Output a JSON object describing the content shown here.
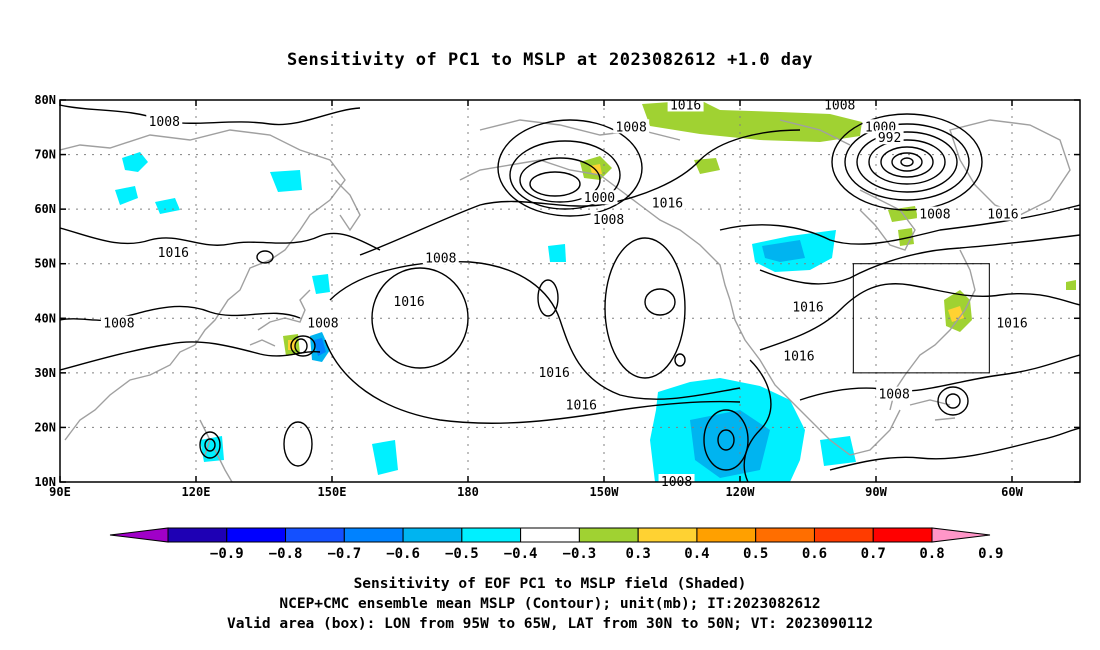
{
  "title": "Sensitivity of PC1 to MSLP at 2023082612 +1.0 day",
  "map": {
    "lat_labels": [
      "80N",
      "70N",
      "60N",
      "50N",
      "40N",
      "30N",
      "20N",
      "10N"
    ],
    "lon_labels": [
      "90E",
      "120E",
      "150E",
      "180",
      "150W",
      "120W",
      "90W",
      "60W"
    ],
    "lon_range_deg_east": [
      90,
      315
    ],
    "lat_range": [
      10,
      80
    ],
    "valid_box": {
      "lon": [
        -95,
        -65
      ],
      "lat": [
        30,
        50
      ]
    },
    "contour_labels": [
      {
        "text": "1008",
        "lon": 113,
        "lat": 76
      },
      {
        "text": "1008",
        "lon": 216,
        "lat": 75
      },
      {
        "text": "1008",
        "lon": 262,
        "lat": 79
      },
      {
        "text": "1000",
        "lon": 271,
        "lat": 75
      },
      {
        "text": "992",
        "lon": 273,
        "lat": 73
      },
      {
        "text": "1016",
        "lon": 228,
        "lat": 79
      },
      {
        "text": "1016",
        "lon": 115,
        "lat": 52
      },
      {
        "text": "1008",
        "lon": 103,
        "lat": 39
      },
      {
        "text": "1008",
        "lon": 148,
        "lat": 39
      },
      {
        "text": "1000",
        "lon": 209,
        "lat": 62
      },
      {
        "text": "1008",
        "lon": 211,
        "lat": 58
      },
      {
        "text": "1016",
        "lon": 224,
        "lat": 61
      },
      {
        "text": "1008",
        "lon": 174,
        "lat": 51
      },
      {
        "text": "1016",
        "lon": 167,
        "lat": 43
      },
      {
        "text": "1016",
        "lon": 199,
        "lat": 30
      },
      {
        "text": "1016",
        "lon": 205,
        "lat": 24
      },
      {
        "text": "1016",
        "lon": 255,
        "lat": 42
      },
      {
        "text": "1016",
        "lon": 253,
        "lat": 33
      },
      {
        "text": "1008",
        "lon": 283,
        "lat": 59
      },
      {
        "text": "1016",
        "lon": 298,
        "lat": 59
      },
      {
        "text": "1008",
        "lon": 274,
        "lat": 26
      },
      {
        "text": "1016",
        "lon": 300,
        "lat": 39
      },
      {
        "text": "1008",
        "lon": 226,
        "lat": 10
      }
    ],
    "colors": {
      "contour": "#000000",
      "coast": "#a0a0a0",
      "grid": "#808080"
    }
  },
  "colorbar": {
    "labels": [
      "−0.9",
      "−0.8",
      "−0.7",
      "−0.6",
      "−0.5",
      "−0.4",
      "−0.3",
      "0.3",
      "0.4",
      "0.5",
      "0.6",
      "0.7",
      "0.8",
      "0.9"
    ],
    "colors": [
      "#a000c8",
      "#1e00b4",
      "#0000ff",
      "#1450ff",
      "#0082ff",
      "#00b4f0",
      "#00f0ff",
      "#ffffff",
      "#a0d232",
      "#ffd232",
      "#ffa000",
      "#ff6e00",
      "#ff3c00",
      "#ff0000",
      "#ff96c8"
    ]
  },
  "captions": [
    "Sensitivity of EOF PC1 to MSLP field (Shaded)",
    "NCEP+CMC ensemble mean MSLP (Contour); unit(mb); IT:2023082612",
    "Valid area (box): LON from 95W to 65W, LAT from 30N to 50N; VT: 2023090112"
  ]
}
